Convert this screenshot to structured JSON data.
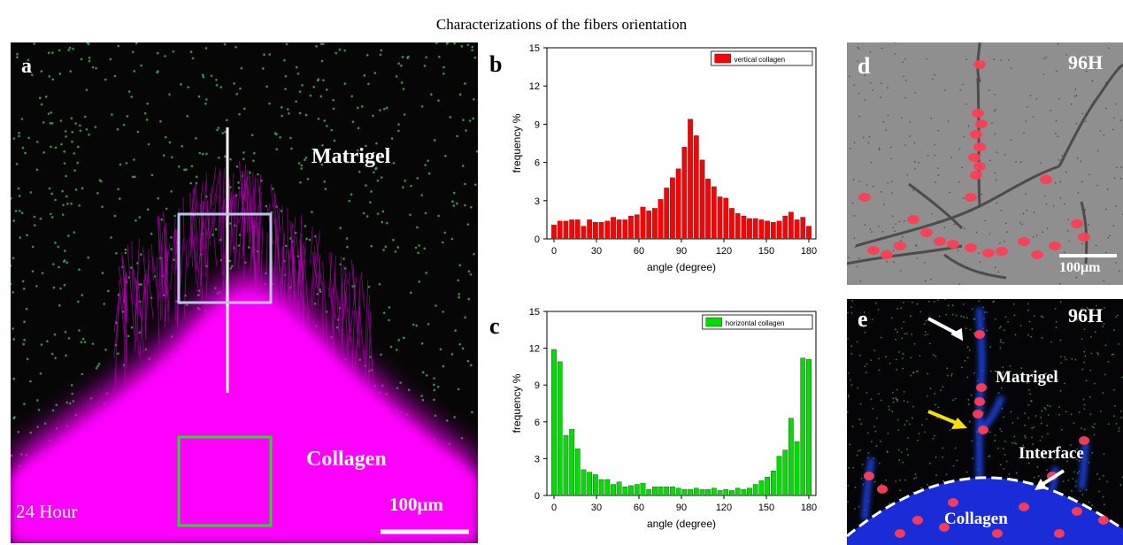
{
  "figure_title": "Characterizations of the fibers orientation",
  "colors": {
    "collagen": "#ff00ff",
    "matrigel_bg": "#060606",
    "cells_green": "#3fae4f",
    "nucleus_red": "#ff3d55",
    "blue": "#1a2bd8",
    "vertical_bar": "#ff0000",
    "horizontal_bar": "#00dd00",
    "roi_blue": "#b8c6e6",
    "roi_green": "#22dd22"
  },
  "panel_a": {
    "label": "a",
    "matrigel_label": "Matrigel",
    "collagen_label": "Collagen",
    "time_label": "24 Hour",
    "scalebar_label": "100μm"
  },
  "panel_d": {
    "label": "d",
    "time_label": "96H",
    "scalebar_label": "100μm"
  },
  "panel_e": {
    "label": "e",
    "time_label": "96H",
    "matrigel_label": "Matrigel",
    "interface_label": "Interface",
    "collagen_label": "Collagen"
  },
  "chart_data": [
    {
      "panel": "b",
      "type": "bar",
      "legend": "vertical collagen",
      "legend_position": "top-right",
      "xlabel": "angle (degree)",
      "ylabel": "frequency %",
      "xlim": [
        -5,
        185
      ],
      "ylim": [
        0,
        15
      ],
      "xticks": [
        0,
        30,
        60,
        90,
        120,
        150,
        180
      ],
      "yticks": [
        0,
        3,
        6,
        9,
        12,
        15
      ],
      "bin_width": 4.2,
      "color": "#ff0000",
      "x": [
        0,
        4.2,
        8.4,
        12.6,
        16.7,
        20.9,
        25.1,
        29.3,
        33.5,
        37.7,
        41.9,
        46,
        50.2,
        54.4,
        58.6,
        62.8,
        67,
        71.2,
        75.3,
        79.5,
        83.7,
        87.9,
        92.1,
        96.3,
        100.5,
        104.7,
        108.8,
        113,
        117.2,
        121.4,
        125.6,
        129.8,
        134,
        138.1,
        142.3,
        146.5,
        150.7,
        154.9,
        159.1,
        163.3,
        167.4,
        171.6,
        175.8,
        180
      ],
      "values": [
        1.1,
        1.4,
        1.4,
        1.5,
        1.5,
        1.0,
        1.5,
        1.3,
        1.3,
        1.4,
        1.7,
        1.5,
        1.5,
        1.8,
        1.9,
        2.5,
        2.2,
        2.4,
        3.1,
        4.0,
        4.8,
        5.5,
        7.2,
        9.4,
        8.1,
        6.2,
        4.7,
        4.1,
        3.3,
        3.2,
        2.4,
        2.0,
        1.8,
        1.6,
        1.6,
        1.5,
        1.4,
        1.3,
        1.4,
        1.8,
        2.1,
        1.5,
        1.7,
        1.0
      ]
    },
    {
      "panel": "c",
      "type": "bar",
      "legend": "horizontal collagen",
      "legend_position": "top-right",
      "xlabel": "angle (degree)",
      "ylabel": "frequency %",
      "xlim": [
        -5,
        185
      ],
      "ylim": [
        0,
        15
      ],
      "xticks": [
        0,
        30,
        60,
        90,
        120,
        150,
        180
      ],
      "yticks": [
        0,
        3,
        6,
        9,
        12,
        15
      ],
      "bin_width": 4.2,
      "color": "#00dd00",
      "x": [
        0,
        4.2,
        8.4,
        12.6,
        16.7,
        20.9,
        25.1,
        29.3,
        33.5,
        37.7,
        41.9,
        46,
        50.2,
        54.4,
        58.6,
        62.8,
        67,
        71.2,
        75.3,
        79.5,
        83.7,
        87.9,
        92.1,
        96.3,
        100.5,
        104.7,
        108.8,
        113,
        117.2,
        121.4,
        125.6,
        129.8,
        134,
        138.1,
        142.3,
        146.5,
        150.7,
        154.9,
        159.1,
        163.3,
        167.4,
        171.6,
        175.8,
        180
      ],
      "values": [
        11.9,
        10.9,
        4.9,
        5.4,
        3.8,
        2.1,
        1.9,
        1.7,
        1.3,
        1.3,
        0.9,
        1.1,
        0.7,
        0.8,
        0.9,
        1.0,
        0.5,
        0.7,
        0.7,
        0.7,
        0.7,
        0.6,
        0.5,
        0.5,
        0.6,
        0.5,
        0.5,
        0.6,
        0.4,
        0.5,
        0.4,
        0.6,
        0.5,
        0.6,
        0.9,
        1.2,
        1.5,
        2.0,
        3.2,
        3.7,
        6.3,
        4.4,
        11.2,
        11.1
      ]
    }
  ]
}
